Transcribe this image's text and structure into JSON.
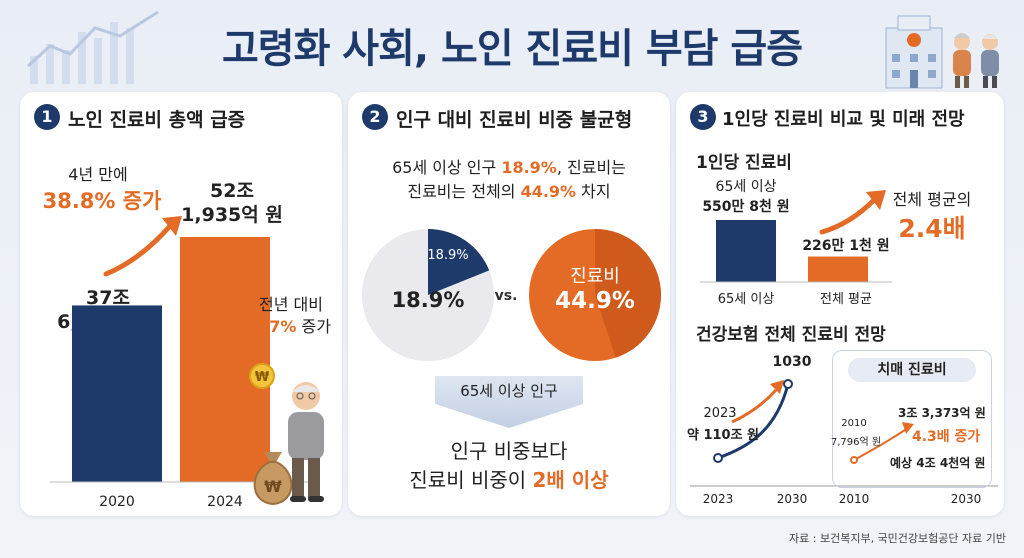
{
  "title": "고령화 사회, 노인 진료비 부담 급증",
  "source": "자료 : 보건복지부, 국민건강보험공단 자료 기반",
  "colors": {
    "navy": "#1d3a6b",
    "orange": "#e36b26",
    "light_gray": "#e9e9ee"
  },
  "icons": [
    "chart-background-icon",
    "hospital-icon",
    "elderly-couple-icon",
    "coin-icon",
    "money-bag-icon",
    "elderly-man-icon",
    "growth-arrow-icon"
  ],
  "section1": {
    "number": "1",
    "title": "노인 진료비 총액 급증",
    "increase_note_line1": "4년 만에",
    "increase_note_line2": "38.8% 증가",
    "label_2020_line1": "37조",
    "label_2020_line2": "6,135억 원",
    "label_2024_line1": "52조",
    "label_2024_line2": "1,935억 원",
    "yoy_line1": "전년 대비",
    "yoy_pct": "6.7%",
    "yoy_suffix": "증가"
  },
  "section2": {
    "number": "2",
    "title": "인구 대비 진료비 비중 불균형",
    "desc_line1_a": "65세 이상 인구 ",
    "desc_line1_b": "18.9%",
    "desc_line1_c": ", 진료비는",
    "desc_line2_a": "진료비는 전체의 ",
    "desc_line2_b": "44.9%",
    "desc_line2_c": " 차지",
    "pie1_small_label": "18.9%",
    "pie1_big_label": "18.9%",
    "vs": "vs.",
    "pie2_label": "진료비",
    "pie2_value": "44.9%",
    "arrow_label": "65세 이상 인구",
    "conclusion_line1": "인구 비중보다",
    "conclusion_line2_a": "진료비 비중이 ",
    "conclusion_line2_b": "2배 이상"
  },
  "section3": {
    "number": "3",
    "title": "1인당 진료비 비교 및 미래 전망",
    "per_capita_title": "1인당 진료비",
    "bar1_value_line1": "65세 이상",
    "bar1_value_line2": "550만 8천 원",
    "bar2_value": "226만 1천 원",
    "bar1_axis": "65세 이상",
    "bar2_axis": "전체 평균",
    "ratio_line1": "전체 평균의",
    "ratio_line2": "2.4배",
    "forecast_title": "건강보험 전체 진료비 전망",
    "forecast_label_2023_line1": "2023",
    "forecast_label_2023_line2": "약 110조 원",
    "forecast_label_2030": "1030",
    "dementia_title": "치매 진료비",
    "dementia_2010_line1": "2010",
    "dementia_2010_line2": "7,796억 원",
    "dementia_current": "3조 3,373억 원",
    "dementia_growth": "4.3배 증가",
    "dementia_forecast": "예상 4조 4천억 원",
    "axis_2023": "2023",
    "axis_2030a": "2030",
    "axis_2010": "2010",
    "axis_2030b": "2030"
  },
  "chart_data": [
    {
      "type": "bar",
      "categories": [
        "2020",
        "2024"
      ],
      "values": [
        37.6135,
        52.1935
      ],
      "value_labels": [
        "37조 6,135억 원",
        "52조 1,935억 원"
      ],
      "title": "노인 진료비 총액 급증",
      "xlabel": "",
      "ylabel": "",
      "colors": [
        "#1d3a6b",
        "#e36b26"
      ]
    },
    {
      "type": "pie",
      "title": "인구 대비 진료비 비중 불균형",
      "pies": [
        {
          "categories": [
            "65세 이상 인구"
          ],
          "values": [
            18.9
          ]
        },
        {
          "categories": [
            "진료비"
          ],
          "values": [
            44.9
          ]
        }
      ]
    },
    {
      "type": "bar",
      "title": "1인당 진료비",
      "categories": [
        "65세 이상",
        "전체 평균"
      ],
      "values": [
        550.8,
        226.1
      ],
      "value_labels": [
        "550만 8천 원",
        "226만 1천 원"
      ]
    },
    {
      "type": "line",
      "title": "건강보험 전체 진료비 전망",
      "x": [
        "2023",
        "2030"
      ],
      "values": [
        110,
        null
      ],
      "point_labels": [
        "약 110조 원",
        "1030"
      ]
    },
    {
      "type": "line",
      "title": "치매 진료비",
      "x": [
        "2010",
        "2030"
      ],
      "point_labels": [
        "7,796억 원",
        "3조 3,373억 원"
      ]
    }
  ]
}
